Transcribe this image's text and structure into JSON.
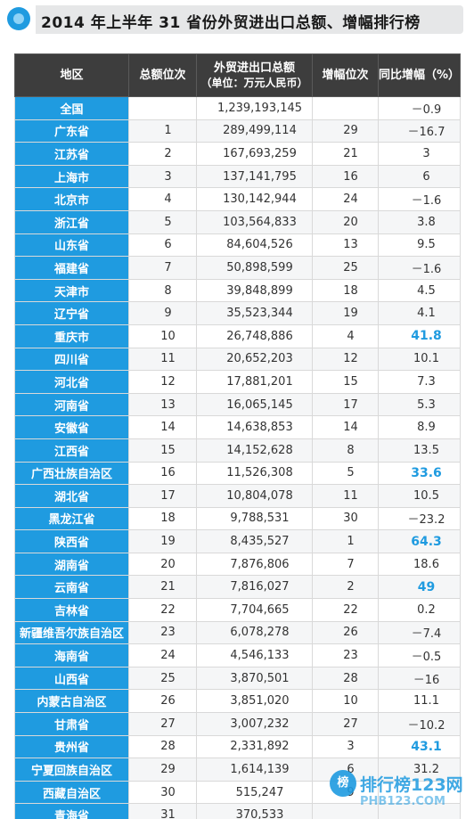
{
  "title": "2014 年上半年 31 省份外贸进出口总额、增幅排行榜",
  "table": {
    "headers": {
      "region": "地区",
      "total_rank": "总额位次",
      "total_line1": "外贸进出口总额",
      "total_line2": "（单位：万元人民币）",
      "growth_rank": "增幅位次",
      "growth": "同比增幅（%）"
    },
    "rows": [
      {
        "region": "全国",
        "rank": "",
        "total": "1,239,193,145",
        "growth_rank": "",
        "growth": "－0.9",
        "highlight": false
      },
      {
        "region": "广东省",
        "rank": "1",
        "total": "289,499,114",
        "growth_rank": "29",
        "growth": "－16.7",
        "highlight": false
      },
      {
        "region": "江苏省",
        "rank": "2",
        "total": "167,693,259",
        "growth_rank": "21",
        "growth": "3",
        "highlight": false
      },
      {
        "region": "上海市",
        "rank": "3",
        "total": "137,141,795",
        "growth_rank": "16",
        "growth": "6",
        "highlight": false
      },
      {
        "region": "北京市",
        "rank": "4",
        "total": "130,142,944",
        "growth_rank": "24",
        "growth": "－1.6",
        "highlight": false
      },
      {
        "region": "浙江省",
        "rank": "5",
        "total": "103,564,833",
        "growth_rank": "20",
        "growth": "3.8",
        "highlight": false
      },
      {
        "region": "山东省",
        "rank": "6",
        "total": "84,604,526",
        "growth_rank": "13",
        "growth": "9.5",
        "highlight": false
      },
      {
        "region": "福建省",
        "rank": "7",
        "total": "50,898,599",
        "growth_rank": "25",
        "growth": "－1.6",
        "highlight": false
      },
      {
        "region": "天津市",
        "rank": "8",
        "total": "39,848,899",
        "growth_rank": "18",
        "growth": "4.5",
        "highlight": false
      },
      {
        "region": "辽宁省",
        "rank": "9",
        "total": "35,523,344",
        "growth_rank": "19",
        "growth": "4.1",
        "highlight": false
      },
      {
        "region": "重庆市",
        "rank": "10",
        "total": "26,748,886",
        "growth_rank": "4",
        "growth": "41.8",
        "highlight": true
      },
      {
        "region": "四川省",
        "rank": "11",
        "total": "20,652,203",
        "growth_rank": "12",
        "growth": "10.1",
        "highlight": false
      },
      {
        "region": "河北省",
        "rank": "12",
        "total": "17,881,201",
        "growth_rank": "15",
        "growth": "7.3",
        "highlight": false
      },
      {
        "region": "河南省",
        "rank": "13",
        "total": "16,065,145",
        "growth_rank": "17",
        "growth": "5.3",
        "highlight": false
      },
      {
        "region": "安徽省",
        "rank": "14",
        "total": "14,638,853",
        "growth_rank": "14",
        "growth": "8.9",
        "highlight": false
      },
      {
        "region": "江西省",
        "rank": "15",
        "total": "14,152,628",
        "growth_rank": "8",
        "growth": "13.5",
        "highlight": false
      },
      {
        "region": "广西壮族自治区",
        "rank": "16",
        "total": "11,526,308",
        "growth_rank": "5",
        "growth": "33.6",
        "highlight": true
      },
      {
        "region": "湖北省",
        "rank": "17",
        "total": "10,804,078",
        "growth_rank": "11",
        "growth": "10.5",
        "highlight": false
      },
      {
        "region": "黑龙江省",
        "rank": "18",
        "total": "9,788,531",
        "growth_rank": "30",
        "growth": "－23.2",
        "highlight": false
      },
      {
        "region": "陕西省",
        "rank": "19",
        "total": "8,435,527",
        "growth_rank": "1",
        "growth": "64.3",
        "highlight": true
      },
      {
        "region": "湖南省",
        "rank": "20",
        "total": "7,876,806",
        "growth_rank": "7",
        "growth": "18.6",
        "highlight": false
      },
      {
        "region": "云南省",
        "rank": "21",
        "total": "7,816,027",
        "growth_rank": "2",
        "growth": "49",
        "highlight": true
      },
      {
        "region": "吉林省",
        "rank": "22",
        "total": "7,704,665",
        "growth_rank": "22",
        "growth": "0.2",
        "highlight": false
      },
      {
        "region": "新疆维吾尔族自治区",
        "rank": "23",
        "total": "6,078,278",
        "growth_rank": "26",
        "growth": "－7.4",
        "highlight": false
      },
      {
        "region": "海南省",
        "rank": "24",
        "total": "4,546,133",
        "growth_rank": "23",
        "growth": "－0.5",
        "highlight": false
      },
      {
        "region": "山西省",
        "rank": "25",
        "total": "3,870,501",
        "growth_rank": "28",
        "growth": "－16",
        "highlight": false
      },
      {
        "region": "内蒙古自治区",
        "rank": "26",
        "total": "3,851,020",
        "growth_rank": "10",
        "growth": "11.1",
        "highlight": false
      },
      {
        "region": "甘肃省",
        "rank": "27",
        "total": "3,007,232",
        "growth_rank": "27",
        "growth": "－10.2",
        "highlight": false
      },
      {
        "region": "贵州省",
        "rank": "28",
        "total": "2,331,892",
        "growth_rank": "3",
        "growth": "43.1",
        "highlight": true
      },
      {
        "region": "宁夏回族自治区",
        "rank": "29",
        "total": "1,614,139",
        "growth_rank": "6",
        "growth": "31.2",
        "highlight": false
      },
      {
        "region": "西藏自治区",
        "rank": "30",
        "total": "515,247",
        "growth_rank": "9",
        "growth": "",
        "highlight": false
      },
      {
        "region": "青海省",
        "rank": "31",
        "total": "370,533",
        "growth_rank": "",
        "growth": "",
        "highlight": false
      }
    ]
  },
  "watermark": {
    "logo_char": "榜",
    "text": "排行榜123网",
    "sub": "PHB123.COM"
  },
  "colors": {
    "accent": "#1f9be0",
    "header_bg": "#3d3d3d"
  }
}
